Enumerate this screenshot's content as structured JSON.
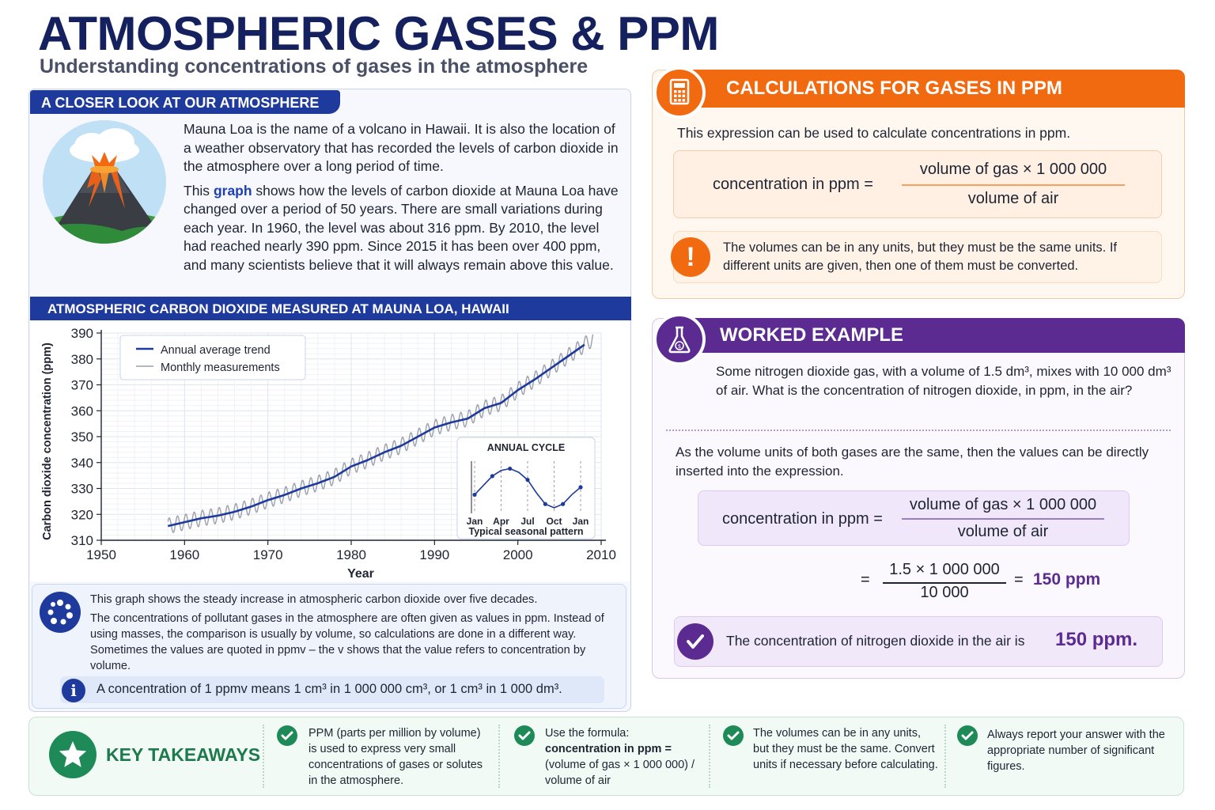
{
  "header": {
    "title": "ATMOSPHERIC GASES & PPM",
    "subtitle": "Understanding concentrations of gases in the atmosphere"
  },
  "closer_look": {
    "heading": "A CLOSER LOOK AT OUR ATMOSPHERE",
    "paragraph1": "Mauna Loa is the name of a volcano in Hawaii. It is also the location of a weather observatory that has recorded the levels of carbon dioxide in the atmosphere over a long period of time.",
    "paragraph2_pre": "This ",
    "paragraph2_highlight": "graph",
    "paragraph2_post": " shows how the levels of carbon dioxide at Mauna Loa have changed over a period of 50 years. There are small variations during each year. In 1960, the level was about 316 ppm. By 2010, the level had reached nearly 390 ppm. Since 2015 it has been over 400 ppm, and many scientists believe that it will always remain above this value."
  },
  "chart_section": {
    "heading": "ATMOSPHERIC CARBON DIOXIDE MEASURED AT MAUNA LOA, HAWAII"
  },
  "chart_data": [
    {
      "type": "line",
      "title": "ATMOSPHERIC CARBON DIOXIDE MEASURED AT MAUNA LOA, HAWAII",
      "xlabel": "Year",
      "ylabel": "Carbon dioxide concentration (ppm)",
      "xlim": [
        1950,
        2010
      ],
      "ylim": [
        310,
        390
      ],
      "xticks": [
        "1950",
        "1960",
        "1970",
        "1980",
        "1990",
        "2000",
        "2010"
      ],
      "yticks": [
        "310",
        "320",
        "330",
        "340",
        "350",
        "360",
        "370",
        "380",
        "390"
      ],
      "grid": true,
      "legend_position": "top-left",
      "series": [
        {
          "name": "Annual average trend",
          "color": "#1e3a9c",
          "x": [
            1958,
            1960,
            1962,
            1964,
            1966,
            1968,
            1970,
            1972,
            1974,
            1976,
            1978,
            1980,
            1982,
            1984,
            1986,
            1988,
            1990,
            1992,
            1994,
            1996,
            1998,
            2000,
            2002,
            2004,
            2006,
            2008
          ],
          "y": [
            315.5,
            317,
            318.5,
            319.5,
            321,
            323,
            325.5,
            327.5,
            330,
            332,
            334.5,
            338.5,
            341,
            344,
            346.5,
            350,
            353.5,
            355.5,
            357,
            361,
            363,
            368,
            372,
            376.5,
            381,
            385.5
          ]
        },
        {
          "name": "Monthly measurements",
          "color": "#9aa0ab",
          "seasonal_amplitude_ppm": 3,
          "x_range": [
            1958,
            2009
          ],
          "follows": "Annual average trend"
        }
      ]
    },
    {
      "type": "line",
      "title": "ANNUAL CYCLE",
      "xlabel": "Typical seasonal pattern",
      "categories": [
        "Jan",
        "Feb",
        "Mar",
        "Apr",
        "May",
        "Jun",
        "Jul",
        "Aug",
        "Sep",
        "Oct",
        "Nov",
        "Dec",
        "Jan"
      ],
      "xtick_labels": [
        "Jan",
        "Apr",
        "Jul",
        "Oct",
        "Jan"
      ],
      "values": [
        0,
        2.5,
        5,
        6.5,
        7,
        6,
        4,
        0.5,
        -2.5,
        -3.5,
        -2.5,
        0,
        2
      ],
      "color": "#1e3a9c"
    }
  ],
  "legend": {
    "trend_label": "Annual average trend",
    "monthly_label": "Monthly measurements"
  },
  "chart_labels": {
    "y_axis": "Carbon dioxide concentration (ppm)",
    "x_axis": "Year",
    "inset_title": "ANNUAL CYCLE",
    "inset_caption": "Typical seasonal pattern"
  },
  "info": {
    "line1": "This graph shows the steady increase in atmospheric carbon dioxide over five decades.",
    "line2": "The concentrations of pollutant gases in the atmosphere are often given as values in ppm. Instead of using masses, the comparison is usually by volume, so calculations are done in a different way. Sometimes the values are quoted in ppmv – the v shows that the value refers to concentration by volume.",
    "ppmv_note": "A concentration of 1 ppmv means 1 cm³ in 1 000 000 cm³, or 1 cm³ in 1 000 dm³."
  },
  "calculations": {
    "heading": "CALCULATIONS FOR GASES IN PPM",
    "lead": "This expression can be used to calculate concentrations in ppm.",
    "formula_lhs": "concentration in ppm =",
    "formula_num": "volume of gas × 1 000 000",
    "formula_den": "volume of air",
    "warning": "The volumes can be in any units, but they must be the same units. If different units are given, then one of them must be converted."
  },
  "worked_example": {
    "heading": "WORKED EXAMPLE",
    "question_a": "Some nitrogen dioxide gas, with a volume of 1.5 dm³, mixes with 10 000 dm³ of air. What is the concentration of nitrogen dioxide, in ppm, in the air?",
    "step": "As the volume units of both gases are the same, then the values can be directly inserted into the expression.",
    "formula_lhs": "concentration in ppm =",
    "formula_num": "volume of gas × 1 000 000",
    "formula_den": "volume of air",
    "sub_eq": "=",
    "sub_num": "1.5 × 1 000 000",
    "sub_den": "10 000",
    "sub_eq2": "=",
    "sub_result": "150 ppm",
    "answer_text": "The concentration of nitrogen dioxide in the air is",
    "answer_value": "150 ppm."
  },
  "takeaways": {
    "title": "KEY TAKEAWAYS",
    "item1": "PPM (parts per million by volume) is used to express very small concentrations of gases or solutes in the atmosphere.",
    "item2_intro": "Use the formula:",
    "item2_bold": "concentration in ppm =",
    "item2_rest": "(volume of gas × 1 000 000) / volume of air",
    "item3": "The volumes can be in any units, but they must be the same. Convert units if necessary before calculating.",
    "item4": "Always report your answer with the appropriate number of significant figures."
  },
  "colors": {
    "navy": "#15205e",
    "blue": "#1e3a9c",
    "orange": "#f26a10",
    "purple": "#5b2b91",
    "green": "#1d8a57"
  }
}
